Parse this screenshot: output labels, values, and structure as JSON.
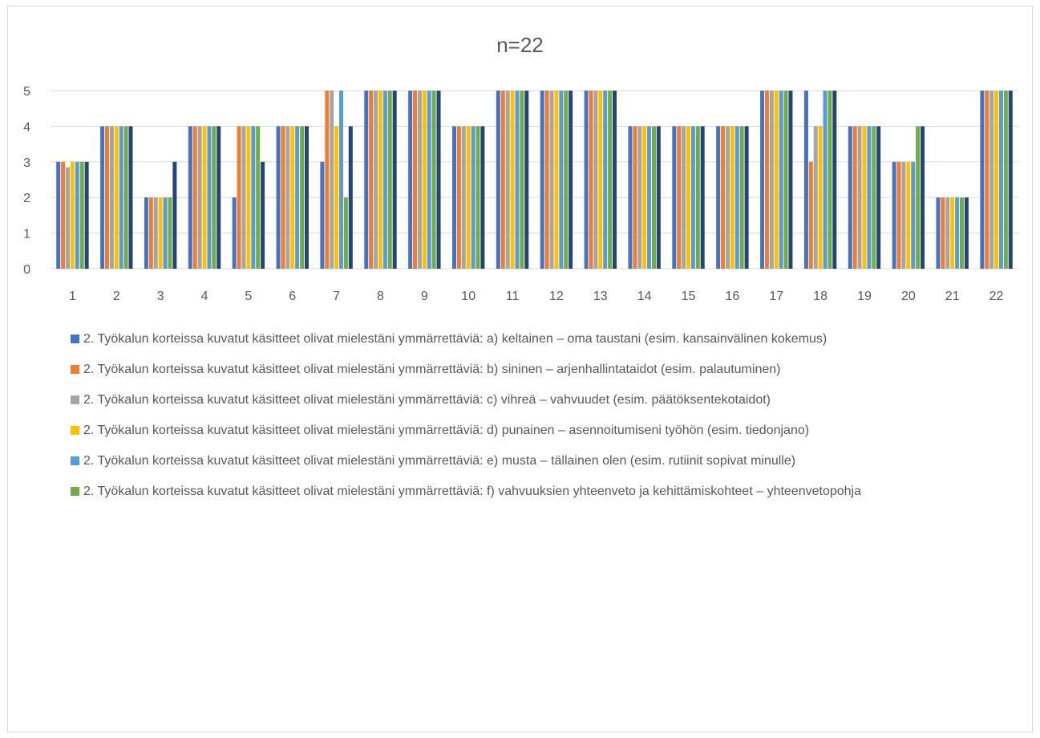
{
  "chart_data": {
    "type": "bar",
    "title": "n=22",
    "xlabel": "",
    "ylabel": "",
    "ylim": [
      0,
      5
    ],
    "yticks": [
      0,
      1,
      2,
      3,
      4,
      5
    ],
    "grid": true,
    "legend_position": "bottom",
    "categories": [
      "1",
      "2",
      "3",
      "4",
      "5",
      "6",
      "7",
      "8",
      "9",
      "10",
      "11",
      "12",
      "13",
      "14",
      "15",
      "16",
      "17",
      "18",
      "19",
      "20",
      "21",
      "22"
    ],
    "series": [
      {
        "name": "2. Työkalun korteissa kuvatut käsitteet olivat mielestäni ymmärrettäviä: a) keltainen – oma taustani (esim. kansainvälinen kokemus)",
        "color": "#4472c4",
        "values": [
          3,
          4,
          2,
          4,
          2,
          4,
          3,
          5,
          5,
          4,
          5,
          5,
          5,
          4,
          4,
          4,
          5,
          5,
          4,
          3,
          2,
          5
        ]
      },
      {
        "name": "2. Työkalun korteissa kuvatut käsitteet olivat mielestäni ymmärrettäviä: b) sininen – arjenhallintataidot (esim. palautuminen)",
        "color": "#ed7d31",
        "values": [
          3,
          4,
          2,
          4,
          4,
          4,
          5,
          5,
          5,
          4,
          5,
          5,
          5,
          4,
          4,
          4,
          5,
          3,
          4,
          3,
          2,
          5
        ]
      },
      {
        "name": "2. Työkalun korteissa kuvatut käsitteet olivat mielestäni ymmärrettäviä: c) vihreä – vahvuudet (esim. päätöksentekotaidot)",
        "color": "#a5a5a5",
        "values": [
          2.85,
          4,
          2,
          4,
          4,
          4,
          5,
          5,
          5,
          4,
          5,
          5,
          5,
          4,
          4,
          4,
          5,
          4,
          4,
          3,
          2,
          5
        ]
      },
      {
        "name": "2. Työkalun korteissa kuvatut käsitteet olivat mielestäni ymmärrettäviä: d) punainen – asennoitumiseni työhön (esim. tiedonjano)",
        "color": "#ffc000",
        "values": [
          3,
          4,
          2,
          4,
          4,
          4,
          4,
          5,
          5,
          4,
          5,
          5,
          5,
          4,
          4,
          4,
          5,
          4,
          4,
          3,
          2,
          5
        ]
      },
      {
        "name": "2. Työkalun korteissa kuvatut käsitteet olivat mielestäni ymmärrettäviä: e) musta – tällainen olen (esim. rutiinit sopivat minulle)",
        "color": "#5b9bd5",
        "values": [
          3,
          4,
          2,
          4,
          4,
          4,
          5,
          5,
          5,
          4,
          5,
          5,
          5,
          4,
          4,
          4,
          5,
          5,
          4,
          3,
          2,
          5
        ]
      },
      {
        "name": "2. Työkalun korteissa kuvatut käsitteet olivat mielestäni ymmärrettäviä: f) vahvuuksien yhteenveto ja kehittämiskohteet – yhteenvetopohja",
        "color": "#70ad47",
        "values": [
          3,
          4,
          2,
          4,
          4,
          4,
          2,
          5,
          5,
          4,
          5,
          5,
          5,
          4,
          4,
          4,
          5,
          5,
          4,
          4,
          2,
          5
        ]
      },
      {
        "name": "",
        "color": "#264478",
        "values": [
          3,
          4,
          3,
          4,
          3,
          4,
          4,
          5,
          5,
          4,
          5,
          5,
          5,
          4,
          4,
          4,
          5,
          5,
          4,
          4,
          2,
          5
        ]
      }
    ]
  }
}
